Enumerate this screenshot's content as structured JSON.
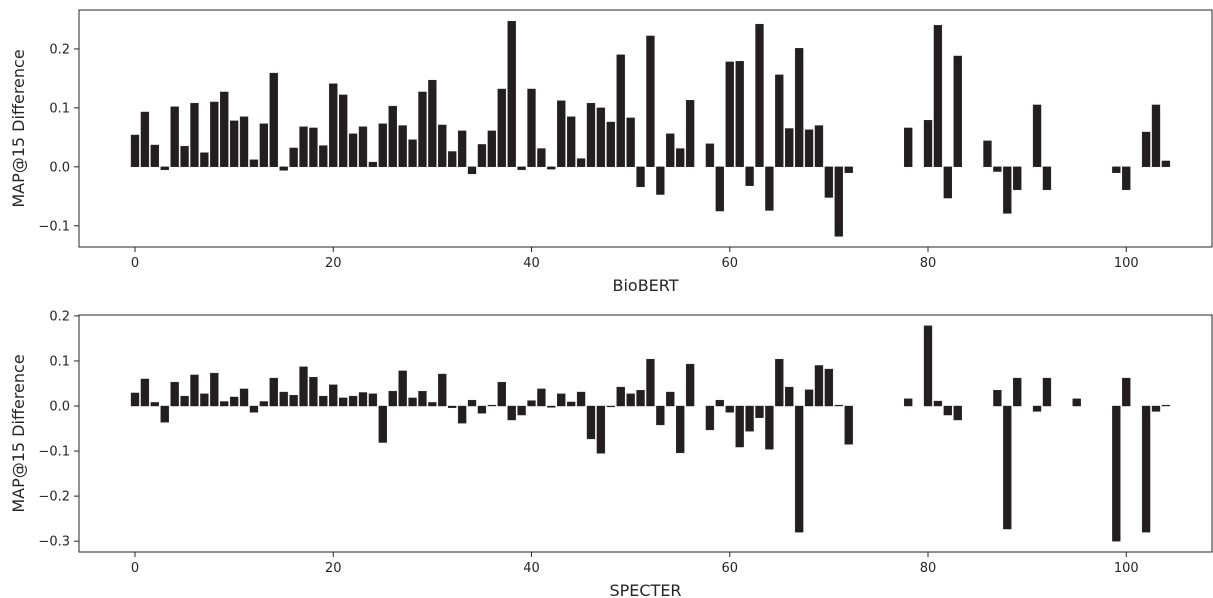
{
  "chart_data": [
    {
      "type": "bar",
      "xlabel": "BioBERT",
      "ylabel": "MAP@15 Difference",
      "color": "#231f20",
      "x": [
        0,
        1,
        2,
        3,
        4,
        5,
        6,
        7,
        8,
        9,
        10,
        11,
        12,
        13,
        14,
        15,
        16,
        17,
        18,
        19,
        20,
        21,
        22,
        23,
        24,
        25,
        26,
        27,
        28,
        29,
        30,
        31,
        32,
        33,
        34,
        35,
        36,
        37,
        38,
        39,
        40,
        41,
        42,
        43,
        44,
        45,
        46,
        47,
        48,
        49,
        50,
        51,
        52,
        53,
        54,
        55,
        56,
        57,
        58,
        59,
        60,
        61,
        62,
        63,
        64,
        65,
        66,
        67,
        68,
        69,
        70,
        71,
        72,
        73,
        74,
        75,
        76,
        77,
        78,
        79,
        80,
        81,
        82,
        83,
        84,
        85,
        86,
        87,
        88,
        89,
        90,
        91,
        92,
        93,
        94,
        95,
        96,
        97,
        98,
        99,
        100,
        101,
        102,
        103,
        104
      ],
      "values": [
        0.054,
        0.093,
        0.037,
        -0.005,
        0.102,
        0.035,
        0.108,
        0.024,
        0.11,
        0.127,
        0.078,
        0.085,
        0.012,
        0.073,
        0.159,
        -0.006,
        0.032,
        0.068,
        0.066,
        0.036,
        0.141,
        0.122,
        0.056,
        0.068,
        0.008,
        0.073,
        0.103,
        0.07,
        0.046,
        0.127,
        0.147,
        0.071,
        0.026,
        0.061,
        -0.012,
        0.038,
        0.061,
        0.132,
        0.247,
        -0.005,
        0.132,
        0.031,
        -0.004,
        0.112,
        0.085,
        0.014,
        0.108,
        0.1,
        0.076,
        0.19,
        0.083,
        -0.034,
        0.222,
        -0.047,
        0.056,
        0.031,
        0.113,
        0,
        0.039,
        -0.075,
        0.178,
        0.179,
        -0.032,
        0.242,
        -0.074,
        0.156,
        0.065,
        0.201,
        0.063,
        0.07,
        -0.052,
        -0.118,
        -0.01,
        0,
        0,
        0,
        0,
        0,
        0.066,
        0,
        0.079,
        0.24,
        -0.053,
        0.188,
        0,
        0,
        0.044,
        -0.008,
        -0.079,
        -0.039,
        0,
        0.105,
        -0.039,
        0,
        0,
        0,
        0,
        0,
        0,
        -0.01,
        -0.039,
        0,
        0.059,
        0.105,
        0.01
      ],
      "xlim": [
        -5.65,
        108.65
      ],
      "ylim": [
        -0.136,
        0.266
      ],
      "xticks": [
        0,
        20,
        40,
        60,
        80,
        100
      ],
      "yticks": [
        {
          "value": -0.1,
          "label": "−0.1"
        },
        {
          "value": 0,
          "label": "0.0"
        },
        {
          "value": 0.1,
          "label": "0.1"
        },
        {
          "value": 0.2,
          "label": "0.2"
        }
      ]
    },
    {
      "type": "bar",
      "xlabel": "SPECTER",
      "ylabel": "MAP@15 Difference",
      "color": "#231f20",
      "x": [
        0,
        1,
        2,
        3,
        4,
        5,
        6,
        7,
        8,
        9,
        10,
        11,
        12,
        13,
        14,
        15,
        16,
        17,
        18,
        19,
        20,
        21,
        22,
        23,
        24,
        25,
        26,
        27,
        28,
        29,
        30,
        31,
        32,
        33,
        34,
        35,
        36,
        37,
        38,
        39,
        40,
        41,
        42,
        43,
        44,
        45,
        46,
        47,
        48,
        49,
        50,
        51,
        52,
        53,
        54,
        55,
        56,
        57,
        58,
        59,
        60,
        61,
        62,
        63,
        64,
        65,
        66,
        67,
        68,
        69,
        70,
        71,
        72,
        73,
        74,
        75,
        76,
        77,
        78,
        79,
        80,
        81,
        82,
        83,
        84,
        85,
        86,
        87,
        88,
        89,
        90,
        91,
        92,
        93,
        94,
        95,
        96,
        97,
        98,
        99,
        100,
        101,
        102,
        103,
        104
      ],
      "values": [
        0.029,
        0.06,
        0.008,
        -0.036,
        0.053,
        0.022,
        0.069,
        0.027,
        0.073,
        0.01,
        0.02,
        0.038,
        -0.014,
        0.01,
        0.062,
        0.031,
        0.024,
        0.087,
        0.064,
        0.022,
        0.047,
        0.018,
        0.022,
        0.03,
        0.027,
        -0.081,
        0.033,
        0.078,
        0.018,
        0.033,
        0.008,
        0.071,
        -0.004,
        -0.038,
        0.013,
        -0.016,
        0.002,
        0.053,
        -0.031,
        -0.02,
        0.012,
        0.038,
        -0.003,
        0.027,
        0.009,
        0.031,
        -0.073,
        -0.105,
        -0.002,
        0.042,
        0.027,
        0.035,
        0.104,
        -0.042,
        0.031,
        -0.104,
        0.093,
        0,
        -0.053,
        0.013,
        -0.014,
        -0.091,
        -0.056,
        -0.026,
        -0.096,
        0.104,
        0.042,
        -0.28,
        0.036,
        0.09,
        0.082,
        0.002,
        -0.085,
        0,
        0,
        0,
        0,
        0,
        0.016,
        0,
        0.178,
        0.011,
        -0.02,
        -0.031,
        0,
        0,
        0,
        0.035,
        -0.273,
        0.062,
        0,
        -0.012,
        0.062,
        0,
        0,
        0.016,
        0,
        0,
        0,
        -0.3,
        0.062,
        0,
        -0.28,
        -0.012,
        0.002
      ],
      "xlim": [
        -5.65,
        108.65
      ],
      "ylim": [
        -0.324,
        0.202
      ],
      "xticks": [
        0,
        20,
        40,
        60,
        80,
        100
      ],
      "yticks": [
        {
          "value": -0.3,
          "label": "−0.3"
        },
        {
          "value": -0.2,
          "label": "−0.2"
        },
        {
          "value": -0.1,
          "label": "−0.1"
        },
        {
          "value": 0,
          "label": "0.0"
        },
        {
          "value": 0.1,
          "label": "0.1"
        },
        {
          "value": 0.2,
          "label": "0.2"
        }
      ]
    }
  ]
}
